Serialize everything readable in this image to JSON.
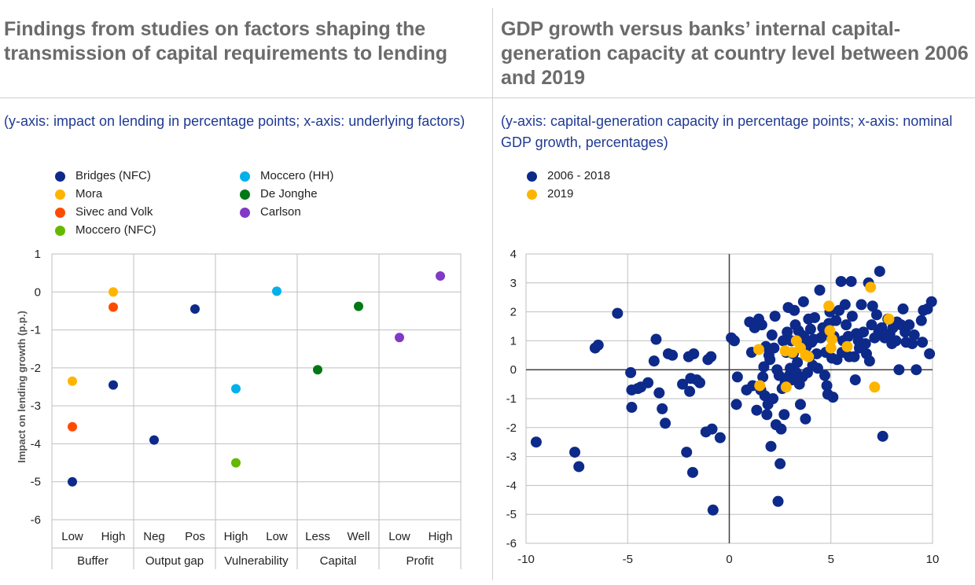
{
  "left": {
    "title": "Findings from studies on factors shaping the transmission of capital requirements to lending",
    "subtitle": "(y-axis: impact on lending in percentage points; x-axis: underlying factors)",
    "legend": [
      {
        "name": "Bridges (NFC)",
        "color": "#0d2a8a"
      },
      {
        "name": "Mora",
        "color": "#ffb400"
      },
      {
        "name": "Sivec and Volk",
        "color": "#ff4b00"
      },
      {
        "name": "Moccero (NFC)",
        "color": "#65b800"
      },
      {
        "name": "Moccero (HH)",
        "color": "#00b1ea"
      },
      {
        "name": "De Jonghe",
        "color": "#007816"
      },
      {
        "name": "Carlson",
        "color": "#8139c6"
      }
    ]
  },
  "right": {
    "title": "GDP growth versus banks’ internal capital-generation capacity at country level between 2006 and 2019",
    "subtitle": "(y-axis: capital-generation capacity in percentage points; x-axis: nominal GDP growth, percentages)",
    "legend": [
      {
        "name": "2006  - 2018",
        "color": "#0d2a8a"
      },
      {
        "name": "2019",
        "color": "#ffb400"
      }
    ]
  },
  "chart_data": [
    {
      "type": "scatter",
      "title": "Findings from studies on factors shaping the transmission of capital requirements to lending",
      "ylabel": "Impact on lending growth (p.p.)",
      "ylim": [
        -6,
        1
      ],
      "yticks": [
        1,
        0,
        -1,
        -2,
        -3,
        -4,
        -5,
        -6
      ],
      "grid": true,
      "legend_position": "top",
      "categories": [
        "Low",
        "High",
        "Neg",
        "Pos",
        "High",
        "Low",
        "Less",
        "Well",
        "Low",
        "High"
      ],
      "groups": [
        {
          "name": "Buffer",
          "categories": [
            "Low",
            "High"
          ]
        },
        {
          "name": "Output gap",
          "categories": [
            "Neg",
            "Pos"
          ]
        },
        {
          "name": "Vulnerability",
          "categories": [
            "High",
            "Low"
          ]
        },
        {
          "name": "Capital",
          "categories": [
            "Less",
            "Well"
          ]
        },
        {
          "name": "Profit",
          "categories": [
            "Low",
            "High"
          ]
        }
      ],
      "series": [
        {
          "name": "Bridges (NFC)",
          "color": "#0d2a8a",
          "points": [
            [
              0,
              -5.0
            ],
            [
              1,
              -2.45
            ],
            [
              2,
              -3.9
            ],
            [
              3,
              -0.45
            ]
          ]
        },
        {
          "name": "Mora",
          "color": "#ffb400",
          "points": [
            [
              0,
              -2.35
            ],
            [
              1,
              0.0
            ]
          ]
        },
        {
          "name": "Sivec and Volk",
          "color": "#ff4b00",
          "points": [
            [
              0,
              -3.55
            ],
            [
              1,
              -0.4
            ]
          ]
        },
        {
          "name": "Moccero (NFC)",
          "color": "#65b800",
          "points": [
            [
              4,
              -4.5
            ]
          ]
        },
        {
          "name": "Moccero (HH)",
          "color": "#00b1ea",
          "points": [
            [
              4,
              -2.55
            ],
            [
              5,
              0.02
            ]
          ]
        },
        {
          "name": "De Jonghe",
          "color": "#007816",
          "points": [
            [
              6,
              -2.05
            ],
            [
              7,
              -0.38
            ]
          ]
        },
        {
          "name": "Carlson",
          "color": "#8139c6",
          "points": [
            [
              8,
              -1.2
            ],
            [
              9,
              0.42
            ]
          ]
        }
      ]
    },
    {
      "type": "scatter",
      "title": "GDP growth versus banks’ internal capital-generation capacity at country level between 2006 and 2019",
      "xlim": [
        -10,
        10
      ],
      "ylim": [
        -6,
        4
      ],
      "xticks": [
        -10,
        -5,
        0,
        5,
        10
      ],
      "yticks": [
        4,
        3,
        2,
        1,
        0,
        -1,
        -2,
        -3,
        -4,
        -5,
        -6
      ],
      "grid": true,
      "legend_position": "top-left",
      "series": [
        {
          "name": "2006  - 2018",
          "color": "#0d2a8a",
          "points": [
            [
              -9.5,
              -2.5
            ],
            [
              -7.6,
              -2.85
            ],
            [
              -7.4,
              -3.35
            ],
            [
              -6.6,
              0.75
            ],
            [
              -6.45,
              0.85
            ],
            [
              -5.5,
              1.95
            ],
            [
              -4.85,
              -0.1
            ],
            [
              -4.8,
              -0.7
            ],
            [
              -4.8,
              -1.3
            ],
            [
              -4.5,
              -0.65
            ],
            [
              -4.35,
              -0.6
            ],
            [
              -4.0,
              -0.45
            ],
            [
              -3.6,
              1.05
            ],
            [
              -3.7,
              0.3
            ],
            [
              -3.45,
              -0.8
            ],
            [
              -3.3,
              -1.35
            ],
            [
              -3.15,
              -1.85
            ],
            [
              -3.0,
              0.55
            ],
            [
              -2.8,
              0.5
            ],
            [
              -2.3,
              -0.5
            ],
            [
              -2.1,
              -2.85
            ],
            [
              -2.0,
              0.45
            ],
            [
              -1.95,
              -0.75
            ],
            [
              -1.9,
              -0.3
            ],
            [
              -1.8,
              -3.55
            ],
            [
              -1.75,
              0.55
            ],
            [
              -1.6,
              -0.35
            ],
            [
              -1.45,
              -0.45
            ],
            [
              -1.15,
              -2.15
            ],
            [
              -1.05,
              0.35
            ],
            [
              -0.9,
              0.45
            ],
            [
              -0.85,
              -2.05
            ],
            [
              -0.8,
              -4.85
            ],
            [
              -0.45,
              -2.35
            ],
            [
              0.1,
              1.1
            ],
            [
              0.25,
              1.0
            ],
            [
              0.35,
              -1.2
            ],
            [
              0.4,
              -0.25
            ],
            [
              0.85,
              -0.7
            ],
            [
              1.0,
              1.65
            ],
            [
              1.1,
              0.6
            ],
            [
              1.15,
              -0.55
            ],
            [
              1.25,
              1.45
            ],
            [
              1.35,
              -1.4
            ],
            [
              1.45,
              1.75
            ],
            [
              1.55,
              -0.7
            ],
            [
              1.6,
              1.55
            ],
            [
              1.65,
              -0.25
            ],
            [
              1.7,
              0.1
            ],
            [
              1.75,
              -0.9
            ],
            [
              1.8,
              0.8
            ],
            [
              1.85,
              -1.55
            ],
            [
              1.9,
              -1.2
            ],
            [
              1.95,
              0.5
            ],
            [
              2.0,
              0.35
            ],
            [
              2.05,
              -2.65
            ],
            [
              2.1,
              1.2
            ],
            [
              2.15,
              -1.0
            ],
            [
              2.2,
              0.75
            ],
            [
              2.25,
              1.85
            ],
            [
              2.3,
              -1.9
            ],
            [
              2.35,
              0.0
            ],
            [
              2.4,
              -4.55
            ],
            [
              2.45,
              -0.2
            ],
            [
              2.5,
              -3.25
            ],
            [
              2.55,
              -2.05
            ],
            [
              2.6,
              -0.65
            ],
            [
              2.65,
              1.0
            ],
            [
              2.7,
              -1.55
            ],
            [
              2.75,
              -0.45
            ],
            [
              2.8,
              0.6
            ],
            [
              2.85,
              1.3
            ],
            [
              2.9,
              2.15
            ],
            [
              2.95,
              -0.2
            ],
            [
              3.0,
              0.05
            ],
            [
              3.05,
              1.0
            ],
            [
              3.1,
              -0.35
            ],
            [
              3.15,
              0.55
            ],
            [
              3.2,
              2.05
            ],
            [
              3.25,
              1.55
            ],
            [
              3.3,
              -0.1
            ],
            [
              3.35,
              0.25
            ],
            [
              3.4,
              1.35
            ],
            [
              3.45,
              -0.5
            ],
            [
              3.5,
              -1.2
            ],
            [
              3.55,
              1.2
            ],
            [
              3.6,
              -0.25
            ],
            [
              3.65,
              2.35
            ],
            [
              3.7,
              1.1
            ],
            [
              3.75,
              -1.7
            ],
            [
              3.8,
              0.8
            ],
            [
              3.85,
              -0.1
            ],
            [
              3.9,
              1.75
            ],
            [
              3.95,
              0.45
            ],
            [
              4.0,
              1.4
            ],
            [
              4.05,
              0.95
            ],
            [
              4.1,
              0.15
            ],
            [
              4.15,
              1.05
            ],
            [
              4.2,
              1.8
            ],
            [
              4.3,
              0.55
            ],
            [
              4.35,
              0.05
            ],
            [
              4.45,
              2.75
            ],
            [
              4.5,
              1.1
            ],
            [
              4.6,
              1.45
            ],
            [
              4.65,
              1.2
            ],
            [
              4.7,
              -0.2
            ],
            [
              4.75,
              0.6
            ],
            [
              4.8,
              -0.55
            ],
            [
              4.85,
              -0.85
            ],
            [
              4.9,
              1.6
            ],
            [
              4.95,
              2.0
            ],
            [
              5.05,
              0.4
            ],
            [
              5.1,
              -0.95
            ],
            [
              5.15,
              1.15
            ],
            [
              5.25,
              1.7
            ],
            [
              5.3,
              0.35
            ],
            [
              5.4,
              2.05
            ],
            [
              5.5,
              3.05
            ],
            [
              5.55,
              0.6
            ],
            [
              5.6,
              1.0
            ],
            [
              5.7,
              2.25
            ],
            [
              5.75,
              1.55
            ],
            [
              5.85,
              1.15
            ],
            [
              5.9,
              0.45
            ],
            [
              6.0,
              3.05
            ],
            [
              6.05,
              1.85
            ],
            [
              6.15,
              0.45
            ],
            [
              6.2,
              -0.35
            ],
            [
              6.25,
              1.25
            ],
            [
              6.35,
              1.0
            ],
            [
              6.4,
              0.75
            ],
            [
              6.5,
              2.25
            ],
            [
              6.6,
              1.3
            ],
            [
              6.7,
              0.9
            ],
            [
              6.75,
              0.55
            ],
            [
              6.85,
              3.0
            ],
            [
              6.9,
              0.3
            ],
            [
              7.0,
              1.55
            ],
            [
              7.05,
              2.2
            ],
            [
              7.15,
              1.1
            ],
            [
              7.25,
              1.9
            ],
            [
              7.35,
              1.3
            ],
            [
              7.4,
              3.4
            ],
            [
              7.5,
              1.45
            ],
            [
              7.55,
              -2.3
            ],
            [
              7.65,
              1.1
            ],
            [
              7.8,
              1.75
            ],
            [
              7.9,
              1.25
            ],
            [
              8.0,
              0.9
            ],
            [
              8.05,
              1.45
            ],
            [
              8.2,
              1.0
            ],
            [
              8.25,
              1.65
            ],
            [
              8.35,
              0.0
            ],
            [
              8.45,
              1.55
            ],
            [
              8.55,
              2.1
            ],
            [
              8.65,
              1.3
            ],
            [
              8.7,
              0.95
            ],
            [
              8.85,
              1.55
            ],
            [
              9.0,
              0.9
            ],
            [
              9.1,
              1.2
            ],
            [
              9.2,
              0.0
            ],
            [
              9.45,
              1.7
            ],
            [
              9.5,
              0.95
            ],
            [
              9.55,
              2.05
            ],
            [
              9.75,
              2.1
            ],
            [
              9.85,
              0.55
            ],
            [
              9.95,
              2.35
            ]
          ]
        },
        {
          "name": "2019",
          "color": "#ffb400",
          "points": [
            [
              1.45,
              0.7
            ],
            [
              1.5,
              -0.55
            ],
            [
              2.75,
              0.65
            ],
            [
              2.8,
              -0.6
            ],
            [
              3.1,
              0.6
            ],
            [
              3.3,
              1.0
            ],
            [
              3.5,
              0.75
            ],
            [
              3.75,
              0.5
            ],
            [
              3.9,
              0.45
            ],
            [
              4.9,
              2.2
            ],
            [
              4.95,
              1.35
            ],
            [
              5.0,
              0.75
            ],
            [
              5.05,
              1.05
            ],
            [
              5.8,
              0.8
            ],
            [
              6.95,
              2.85
            ],
            [
              7.15,
              -0.6
            ],
            [
              7.85,
              1.75
            ]
          ]
        }
      ]
    }
  ]
}
